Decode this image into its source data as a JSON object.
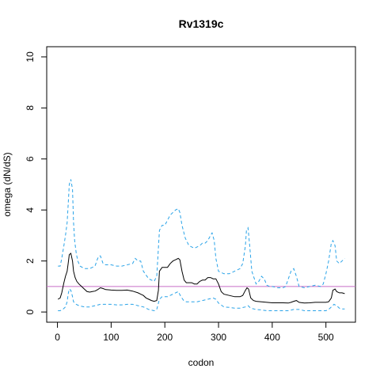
{
  "chart_data": {
    "type": "line",
    "title": "Rv1319c",
    "xlabel": "codon",
    "ylabel": "omega (dN/dS)",
    "xlim": [
      -20,
      555
    ],
    "ylim": [
      -0.4,
      10.4
    ],
    "xticks": [
      0,
      100,
      200,
      300,
      400,
      500
    ],
    "yticks": [
      0,
      2,
      4,
      6,
      8,
      10
    ],
    "xtick_labels": [
      "0",
      "100",
      "200",
      "300",
      "400",
      "500"
    ],
    "ytick_labels": [
      "0",
      "2",
      "4",
      "6",
      "8",
      "10"
    ],
    "grid": false,
    "legend": "none",
    "reference_line": {
      "y": 1.0,
      "color": "#c86dc6"
    },
    "series": [
      {
        "role": "upper-ci",
        "style": "dashed",
        "color": "#29a3e8",
        "x": [
          1,
          5,
          8,
          12,
          15,
          18,
          20,
          22,
          25,
          28,
          30,
          32,
          35,
          38,
          42,
          50,
          60,
          70,
          75,
          78,
          80,
          85,
          90,
          100,
          110,
          120,
          130,
          140,
          145,
          150,
          155,
          160,
          170,
          180,
          185,
          190,
          195,
          200,
          205,
          210,
          215,
          220,
          225,
          228,
          232,
          238,
          245,
          255,
          265,
          270,
          275,
          280,
          285,
          288,
          292,
          295,
          300,
          310,
          320,
          330,
          340,
          345,
          350,
          352,
          355,
          358,
          362,
          370,
          375,
          380,
          385,
          390,
          395,
          400,
          410,
          420,
          425,
          430,
          435,
          440,
          445,
          450,
          460,
          470,
          480,
          490,
          495,
          500,
          505,
          510,
          513,
          517,
          520,
          525,
          530,
          535
        ],
        "y": [
          1.8,
          1.8,
          2.1,
          2.6,
          3.0,
          3.5,
          4.2,
          5.0,
          5.2,
          4.8,
          3.5,
          2.8,
          2.3,
          2.0,
          1.8,
          1.7,
          1.7,
          1.8,
          2.1,
          2.2,
          2.2,
          1.9,
          1.85,
          1.85,
          1.8,
          1.8,
          1.85,
          1.9,
          2.1,
          2.0,
          2.0,
          1.6,
          1.3,
          1.2,
          1.4,
          3.2,
          3.4,
          3.4,
          3.6,
          3.8,
          3.9,
          4.0,
          4.05,
          3.9,
          3.4,
          2.9,
          2.6,
          2.5,
          2.6,
          2.7,
          2.7,
          2.8,
          3.0,
          3.1,
          2.8,
          2.1,
          1.6,
          1.5,
          1.5,
          1.6,
          1.7,
          1.9,
          2.6,
          3.2,
          3.3,
          2.6,
          1.6,
          1.1,
          1.2,
          1.4,
          1.3,
          1.05,
          1.0,
          1.0,
          0.95,
          0.95,
          1.0,
          1.3,
          1.6,
          1.7,
          1.4,
          1.0,
          0.95,
          1.0,
          1.05,
          1.0,
          1.1,
          1.5,
          2.0,
          2.7,
          2.8,
          2.6,
          2.0,
          1.9,
          2.0,
          2.1
        ]
      },
      {
        "role": "mean",
        "style": "solid",
        "color": "#000000",
        "x": [
          1,
          5,
          8,
          12,
          15,
          18,
          20,
          22,
          25,
          28,
          30,
          33,
          36,
          40,
          45,
          50,
          55,
          60,
          65,
          70,
          75,
          80,
          85,
          90,
          100,
          110,
          120,
          130,
          140,
          150,
          155,
          160,
          165,
          170,
          175,
          180,
          185,
          188,
          190,
          195,
          200,
          205,
          210,
          215,
          220,
          225,
          228,
          232,
          236,
          240,
          245,
          250,
          255,
          260,
          265,
          270,
          275,
          280,
          285,
          290,
          295,
          300,
          305,
          310,
          320,
          330,
          340,
          345,
          350,
          353,
          356,
          360,
          365,
          370,
          380,
          390,
          400,
          410,
          420,
          430,
          435,
          440,
          445,
          450,
          460,
          470,
          480,
          490,
          500,
          505,
          510,
          513,
          517,
          520,
          525,
          530,
          535
        ],
        "y": [
          0.5,
          0.55,
          0.75,
          1.15,
          1.4,
          1.6,
          1.9,
          2.25,
          2.3,
          2.0,
          1.6,
          1.35,
          1.2,
          1.1,
          1.0,
          0.9,
          0.8,
          0.78,
          0.8,
          0.82,
          0.88,
          0.95,
          0.92,
          0.88,
          0.86,
          0.85,
          0.85,
          0.86,
          0.82,
          0.75,
          0.7,
          0.65,
          0.55,
          0.5,
          0.45,
          0.42,
          0.45,
          0.85,
          1.6,
          1.75,
          1.75,
          1.75,
          1.9,
          2.0,
          2.05,
          2.1,
          2.05,
          1.6,
          1.25,
          1.15,
          1.15,
          1.15,
          1.1,
          1.1,
          1.2,
          1.25,
          1.25,
          1.35,
          1.35,
          1.3,
          1.3,
          1.1,
          0.8,
          0.7,
          0.65,
          0.6,
          0.6,
          0.65,
          0.85,
          0.95,
          0.9,
          0.55,
          0.45,
          0.42,
          0.4,
          0.38,
          0.36,
          0.36,
          0.36,
          0.35,
          0.38,
          0.42,
          0.45,
          0.38,
          0.35,
          0.36,
          0.38,
          0.38,
          0.38,
          0.4,
          0.55,
          0.85,
          0.9,
          0.8,
          0.75,
          0.75,
          0.72
        ]
      },
      {
        "role": "lower-ci",
        "style": "dashed",
        "color": "#29a3e8",
        "x": [
          1,
          5,
          10,
          15,
          18,
          20,
          22,
          25,
          28,
          30,
          35,
          40,
          50,
          60,
          70,
          80,
          90,
          100,
          110,
          120,
          130,
          140,
          150,
          160,
          170,
          180,
          185,
          188,
          190,
          195,
          200,
          205,
          210,
          220,
          225,
          230,
          235,
          240,
          250,
          260,
          270,
          280,
          290,
          295,
          300,
          310,
          320,
          330,
          340,
          350,
          355,
          360,
          370,
          380,
          390,
          400,
          410,
          420,
          430,
          440,
          450,
          460,
          470,
          480,
          490,
          500,
          505,
          510,
          515,
          520,
          525,
          530,
          535
        ],
        "y": [
          0.05,
          0.05,
          0.1,
          0.2,
          0.4,
          0.7,
          0.9,
          0.85,
          0.6,
          0.4,
          0.3,
          0.25,
          0.2,
          0.2,
          0.25,
          0.3,
          0.3,
          0.3,
          0.28,
          0.28,
          0.3,
          0.3,
          0.25,
          0.2,
          0.1,
          0.05,
          0.1,
          0.35,
          0.5,
          0.6,
          0.6,
          0.6,
          0.65,
          0.75,
          0.8,
          0.6,
          0.45,
          0.4,
          0.4,
          0.4,
          0.45,
          0.5,
          0.55,
          0.5,
          0.35,
          0.2,
          0.18,
          0.15,
          0.15,
          0.2,
          0.25,
          0.15,
          0.1,
          0.08,
          0.05,
          0.05,
          0.05,
          0.05,
          0.05,
          0.1,
          0.1,
          0.05,
          0.05,
          0.05,
          0.05,
          0.05,
          0.1,
          0.2,
          0.3,
          0.25,
          0.15,
          0.12,
          0.12
        ]
      }
    ]
  }
}
